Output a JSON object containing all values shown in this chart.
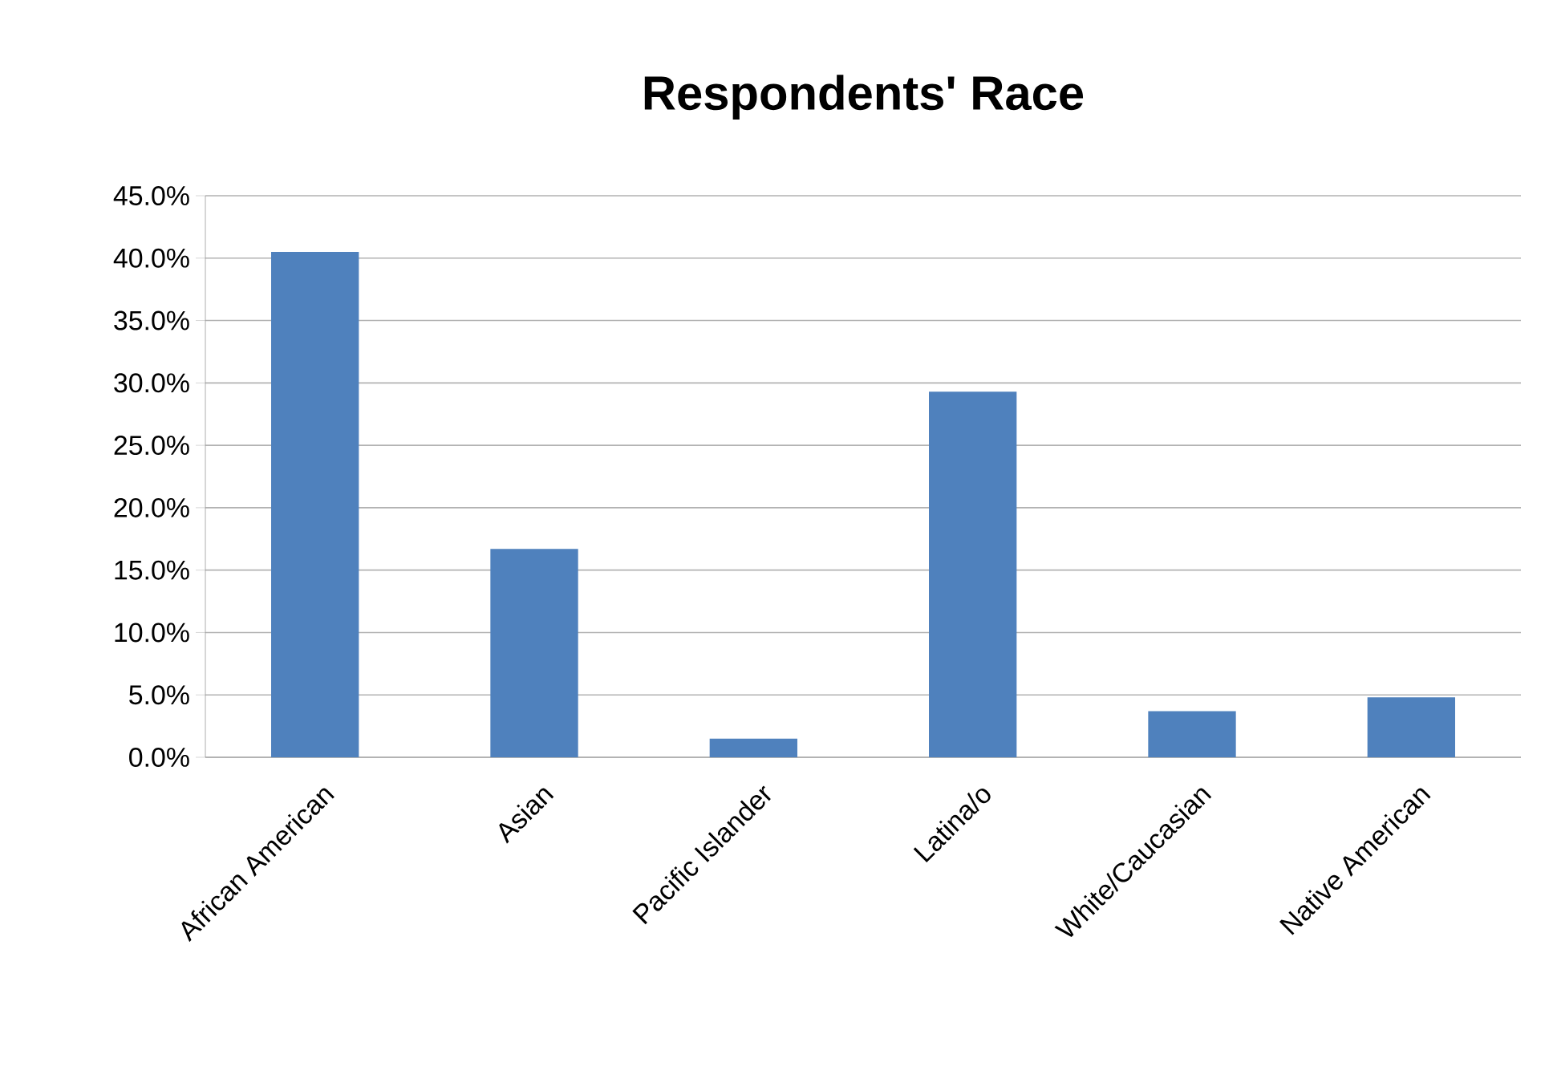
{
  "chart_data": {
    "type": "bar",
    "title": "Respondents' Race",
    "categories": [
      "African American",
      "Asian",
      "Pacific Islander",
      "Latina/o",
      "White/Caucasian",
      "Native American"
    ],
    "values": [
      40.5,
      16.7,
      1.5,
      29.3,
      3.7,
      4.8
    ],
    "color": "#4f81bd",
    "ylim": [
      0,
      45
    ],
    "yticks": [
      {
        "value": 0,
        "label": "0.0%"
      },
      {
        "value": 5,
        "label": "5.0%"
      },
      {
        "value": 10,
        "label": "10.0%"
      },
      {
        "value": 15,
        "label": "15.0%"
      },
      {
        "value": 20,
        "label": "20.0%"
      },
      {
        "value": 25,
        "label": "25.0%"
      },
      {
        "value": 30,
        "label": "30.0%"
      },
      {
        "value": 35,
        "label": "35.0%"
      },
      {
        "value": 40,
        "label": "40.0%"
      },
      {
        "value": 45,
        "label": "45.0%"
      }
    ],
    "grid": "y"
  }
}
